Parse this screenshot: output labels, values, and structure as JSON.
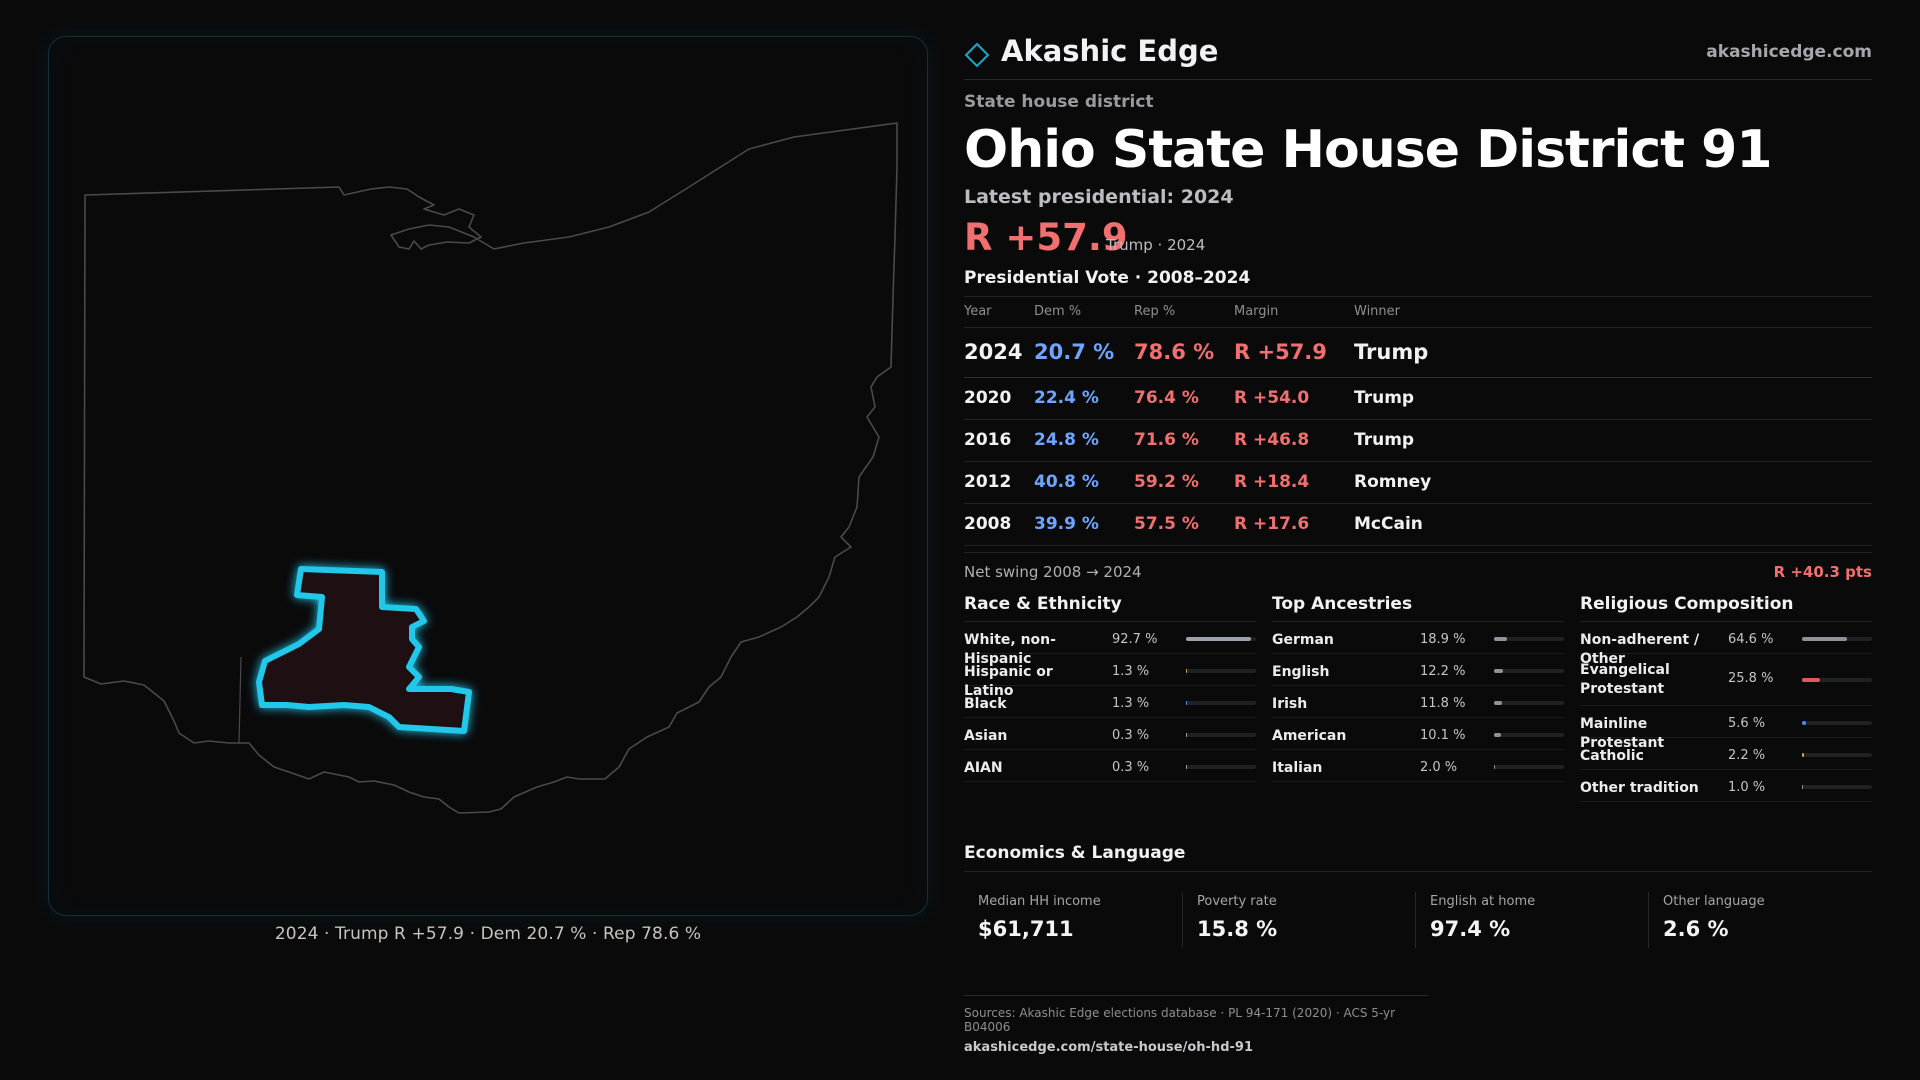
{
  "brand": {
    "name": "Akashic Edge",
    "url": "akashicedge.com"
  },
  "map": {
    "caption": "2024 · Trump R +57.9 · Dem 20.7 % · Rep 78.6 %",
    "state_outline_color": "#4a4a4e",
    "district_stroke_color": "#22c8ea",
    "district_fill_color": "#1e1012"
  },
  "header": {
    "kicker": "State house district",
    "title": "Ohio State House District 91",
    "latest_label": "Latest presidential: 2024",
    "margin": "R +57.9",
    "margin_sub": "Trump · 2024"
  },
  "presidential": {
    "title": "Presidential Vote · 2008–2024",
    "columns": [
      "Year",
      "Dem %",
      "Rep %",
      "Margin",
      "Winner"
    ],
    "rows": [
      {
        "year": "2024",
        "dem": "20.7 %",
        "rep": "78.6 %",
        "margin": "R +57.9",
        "winner": "Trump"
      },
      {
        "year": "2020",
        "dem": "22.4 %",
        "rep": "76.4 %",
        "margin": "R +54.0",
        "winner": "Trump"
      },
      {
        "year": "2016",
        "dem": "24.8 %",
        "rep": "71.6 %",
        "margin": "R +46.8",
        "winner": "Trump"
      },
      {
        "year": "2012",
        "dem": "40.8 %",
        "rep": "59.2 %",
        "margin": "R +18.4",
        "winner": "Romney"
      },
      {
        "year": "2008",
        "dem": "39.9 %",
        "rep": "57.5 %",
        "margin": "R +17.6",
        "winner": "McCain"
      }
    ],
    "swing_label": "Net swing 2008 → 2024",
    "swing_value": "R +40.3 pts"
  },
  "race": {
    "title": "Race & Ethnicity",
    "items": [
      {
        "label": "White, non-Hispanic",
        "pct": "92.7 %",
        "value": 92.7,
        "color": "#9aa3ad"
      },
      {
        "label": "Hispanic or Latino",
        "pct": "1.3 %",
        "value": 1.3,
        "color": "#d9a23a"
      },
      {
        "label": "Black",
        "pct": "1.3 %",
        "value": 1.3,
        "color": "#4f8cff"
      },
      {
        "label": "Asian",
        "pct": "0.3 %",
        "value": 0.3,
        "color": "#9aa3ad"
      },
      {
        "label": "AIAN",
        "pct": "0.3 %",
        "value": 0.3,
        "color": "#9aa3ad"
      }
    ]
  },
  "ancestry": {
    "title": "Top Ancestries",
    "items": [
      {
        "label": "German",
        "pct": "18.9 %",
        "value": 18.9,
        "color": "#8c939b"
      },
      {
        "label": "English",
        "pct": "12.2 %",
        "value": 12.2,
        "color": "#8c939b"
      },
      {
        "label": "Irish",
        "pct": "11.8 %",
        "value": 11.8,
        "color": "#8c939b"
      },
      {
        "label": "American",
        "pct": "10.1 %",
        "value": 10.1,
        "color": "#8c939b"
      },
      {
        "label": "Italian",
        "pct": "2.0 %",
        "value": 2.0,
        "color": "#8c939b"
      }
    ]
  },
  "religion": {
    "title": "Religious Composition",
    "items": [
      {
        "label": "Non-adherent / Other",
        "pct": "64.6 %",
        "value": 64.6,
        "color": "#8c939b"
      },
      {
        "label": "Evangelical Protestant",
        "pct": "25.8 %",
        "value": 25.8,
        "color": "#e05a5a"
      },
      {
        "label": "Mainline Protestant",
        "pct": "5.6 %",
        "value": 5.6,
        "color": "#4f8cff"
      },
      {
        "label": "Catholic",
        "pct": "2.2 %",
        "value": 2.2,
        "color": "#d9a23a"
      },
      {
        "label": "Other tradition",
        "pct": "1.0 %",
        "value": 1.0,
        "color": "#8c939b"
      }
    ]
  },
  "economics": {
    "title": "Economics & Language",
    "cards": [
      {
        "label": "Median HH income",
        "value": "$61,711"
      },
      {
        "label": "Poverty rate",
        "value": "15.8 %"
      },
      {
        "label": "English at home",
        "value": "97.4 %"
      },
      {
        "label": "Other language",
        "value": "2.6 %"
      }
    ]
  },
  "sources": {
    "line": "Sources: Akashic Edge elections database · PL 94-171 (2020) · ACS 5-yr B04006",
    "url": "akashicedge.com/state-house/oh-hd-91"
  }
}
